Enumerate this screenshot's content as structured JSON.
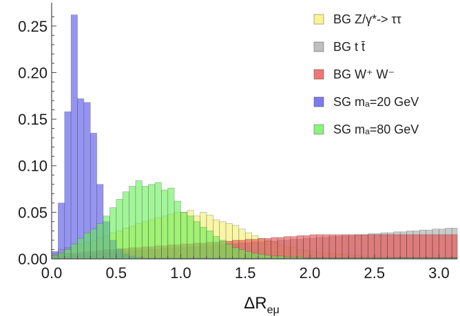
{
  "chart_data": {
    "type": "bar",
    "title": "",
    "xlabel": "ΔR",
    "xlabel_subscript": "eμ",
    "ylabel": "",
    "xlim": [
      0,
      3.1416
    ],
    "ylim": [
      0,
      0.275
    ],
    "x_ticks": [
      "0.0",
      "0.5",
      "1.0",
      "1.5",
      "2.0",
      "2.5",
      "3.0"
    ],
    "x_tick_values": [
      0,
      0.5,
      1.0,
      1.5,
      2.0,
      2.5,
      3.0
    ],
    "y_ticks": [
      "0.00",
      "0.05",
      "0.10",
      "0.15",
      "0.20",
      "0.25"
    ],
    "y_tick_values": [
      0,
      0.05,
      0.1,
      0.15,
      0.2,
      0.25
    ],
    "bin_width": 0.05,
    "legend_position": "top-right",
    "series": [
      {
        "name": "BG Z/γ*-> ττ",
        "color": "#f5f06a",
        "values": [
          0.006,
          0.01,
          0.012,
          0.013,
          0.016,
          0.018,
          0.02,
          0.023,
          0.025,
          0.028,
          0.03,
          0.033,
          0.035,
          0.038,
          0.04,
          0.042,
          0.044,
          0.046,
          0.048,
          0.05,
          0.05,
          0.052,
          0.046,
          0.05,
          0.047,
          0.042,
          0.04,
          0.038,
          0.036,
          0.032,
          0.028,
          0.025,
          0.022,
          0.02,
          0.018,
          0.015,
          0.013,
          0.012,
          0.01,
          0.009,
          0.008,
          0.007,
          0.006,
          0.006,
          0.005,
          0.005,
          0.004,
          0.004,
          0.003,
          0.003,
          0.003,
          0.003,
          0.002,
          0.002,
          0.002,
          0.002,
          0.002,
          0.002,
          0.002,
          0.002,
          0.002,
          0.002,
          0.002
        ]
      },
      {
        "name": "BG t t̄",
        "color": "#a8a8a8",
        "values": [
          0.002,
          0.003,
          0.003,
          0.004,
          0.004,
          0.005,
          0.005,
          0.006,
          0.006,
          0.007,
          0.007,
          0.008,
          0.008,
          0.009,
          0.009,
          0.01,
          0.01,
          0.011,
          0.011,
          0.012,
          0.012,
          0.013,
          0.013,
          0.014,
          0.014,
          0.015,
          0.015,
          0.016,
          0.016,
          0.017,
          0.017,
          0.018,
          0.018,
          0.019,
          0.019,
          0.02,
          0.02,
          0.021,
          0.021,
          0.022,
          0.022,
          0.023,
          0.023,
          0.024,
          0.024,
          0.025,
          0.025,
          0.026,
          0.026,
          0.027,
          0.027,
          0.028,
          0.028,
          0.029,
          0.029,
          0.03,
          0.03,
          0.031,
          0.031,
          0.032,
          0.032,
          0.033,
          0.033
        ]
      },
      {
        "name": "BG W⁺ W⁻",
        "color": "#e84848",
        "values": [
          0.004,
          0.005,
          0.006,
          0.006,
          0.007,
          0.008,
          0.008,
          0.009,
          0.01,
          0.01,
          0.011,
          0.011,
          0.012,
          0.012,
          0.013,
          0.013,
          0.014,
          0.014,
          0.015,
          0.015,
          0.016,
          0.016,
          0.017,
          0.017,
          0.018,
          0.018,
          0.019,
          0.019,
          0.02,
          0.02,
          0.021,
          0.021,
          0.022,
          0.022,
          0.023,
          0.023,
          0.024,
          0.024,
          0.025,
          0.025,
          0.026,
          0.026,
          0.026,
          0.026,
          0.026,
          0.026,
          0.026,
          0.026,
          0.026,
          0.026,
          0.026,
          0.026,
          0.026,
          0.026,
          0.026,
          0.026,
          0.026,
          0.026,
          0.026,
          0.026,
          0.026,
          0.026,
          0.026
        ]
      },
      {
        "name": "SG mₐ=20 GeV",
        "color": "#4f4fe8",
        "values": [
          0.008,
          0.06,
          0.158,
          0.262,
          0.172,
          0.168,
          0.135,
          0.08,
          0.04,
          0.02,
          0.01,
          0.005,
          0.003,
          0.002,
          0.001,
          0.001,
          0.001,
          0.001,
          0.001,
          0.001,
          0.001,
          0.001,
          0.001,
          0.001,
          0.001,
          0.001,
          0.001,
          0.001,
          0.001,
          0.001,
          0.001,
          0.001,
          0.001,
          0.001,
          0.001,
          0.001,
          0.001,
          0.001,
          0.001,
          0.001,
          0.001,
          0.001,
          0.001,
          0.001,
          0.001,
          0.001,
          0.001,
          0.001,
          0.001,
          0.001,
          0.001,
          0.001,
          0.001,
          0.001,
          0.001,
          0.001,
          0.001,
          0.001,
          0.001,
          0.001,
          0.001,
          0.001,
          0.001
        ]
      },
      {
        "name": "SG mₐ=80 GeV",
        "color": "#66ee55",
        "values": [
          0.004,
          0.006,
          0.01,
          0.016,
          0.022,
          0.028,
          0.032,
          0.038,
          0.046,
          0.055,
          0.064,
          0.072,
          0.078,
          0.084,
          0.078,
          0.08,
          0.082,
          0.074,
          0.076,
          0.062,
          0.05,
          0.046,
          0.04,
          0.034,
          0.03,
          0.024,
          0.02,
          0.016,
          0.012,
          0.01,
          0.008,
          0.006,
          0.005,
          0.004,
          0.003,
          0.003,
          0.002,
          0.002,
          0.002,
          0.001,
          0.001,
          0.001,
          0.001,
          0.001,
          0.001,
          0.001,
          0.001,
          0.001,
          0.001,
          0.001,
          0.001,
          0.001,
          0.001,
          0.001,
          0.001,
          0.001,
          0.001,
          0.001,
          0.001,
          0.001,
          0.001,
          0.001,
          0.001
        ]
      }
    ]
  }
}
